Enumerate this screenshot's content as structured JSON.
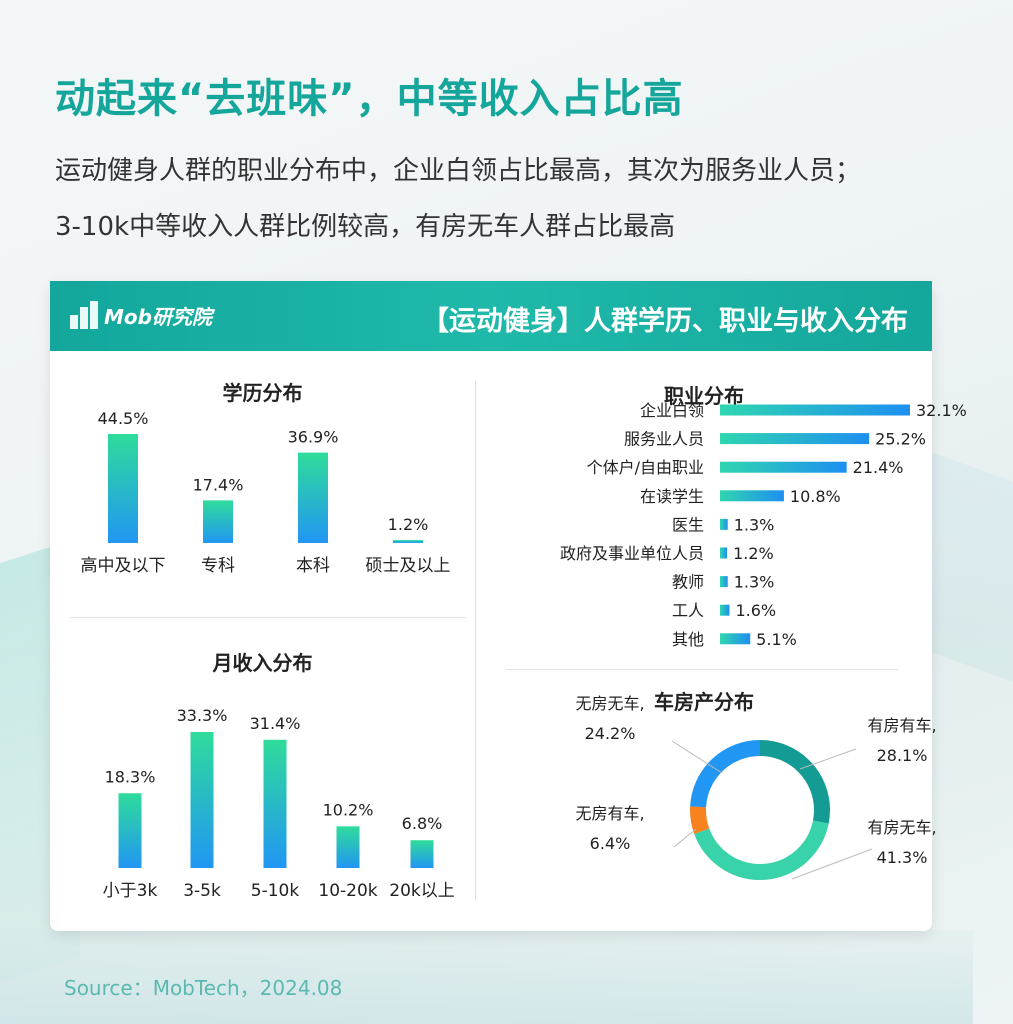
{
  "title": "动起来“去班味”，中等收入占比高",
  "subtitle_lines": [
    "运动健身人群的职业分布中，企业白领占比最高，其次为服务业人员；",
    "3-10k中等收入人群比例较高，有房无车人群占比最高"
  ],
  "card": {
    "logo_text": "Mob研究院",
    "title": "【运动健身】人群学历、职业与收入分布"
  },
  "sections": {
    "education": "学历分布",
    "income": "月收入分布",
    "occupation": "职业分布",
    "assets": "车房产分布"
  },
  "source": "Source：MobTech，2024.08",
  "colors": {
    "accent": "#14a59b",
    "bar_top": "#2fdc9a",
    "bar_bottom": "#2196f3",
    "donut": [
      "#139b94",
      "#38d3a8",
      "#f7821e",
      "#2196f3"
    ]
  },
  "chart_data": [
    {
      "type": "bar",
      "title": "学历分布",
      "categories": [
        "高中及以下",
        "专科",
        "本科",
        "硕士及以上"
      ],
      "values": [
        44.5,
        17.4,
        36.9,
        1.2
      ],
      "labels": [
        "44.5%",
        "17.4%",
        "36.9%",
        "1.2%"
      ],
      "unit": "%",
      "grid": false
    },
    {
      "type": "bar",
      "title": "月收入分布",
      "categories": [
        "小于3k",
        "3-5k",
        "5-10k",
        "10-20k",
        "20k以上"
      ],
      "values": [
        18.3,
        33.3,
        31.4,
        10.2,
        6.8
      ],
      "labels": [
        "18.3%",
        "33.3%",
        "31.4%",
        "10.2%",
        "6.8%"
      ],
      "unit": "%",
      "grid": false
    },
    {
      "type": "bar",
      "orientation": "horizontal",
      "title": "职业分布",
      "categories": [
        "企业白领",
        "服务业人员",
        "个体户/自由职业",
        "在读学生",
        "医生",
        "政府及事业单位人员",
        "教师",
        "工人",
        "其他"
      ],
      "values": [
        32.1,
        25.2,
        21.4,
        10.8,
        1.3,
        1.2,
        1.3,
        1.6,
        5.1
      ],
      "labels": [
        "32.1%",
        "25.2%",
        "21.4%",
        "10.8%",
        "1.3%",
        "1.2%",
        "1.3%",
        "1.6%",
        "5.1%"
      ],
      "unit": "%",
      "grid": false
    },
    {
      "type": "pie",
      "subtype": "donut",
      "title": "车房产分布",
      "categories": [
        "有房有车",
        "有房无车",
        "无房有车",
        "无房无车"
      ],
      "values": [
        28.1,
        41.3,
        6.4,
        24.2
      ],
      "label_names": [
        "有房有车,",
        "有房无车,",
        "无房有车,",
        "无房无车,"
      ],
      "label_values": [
        "28.1%",
        "41.3%",
        "6.4%",
        "24.2%"
      ]
    }
  ]
}
